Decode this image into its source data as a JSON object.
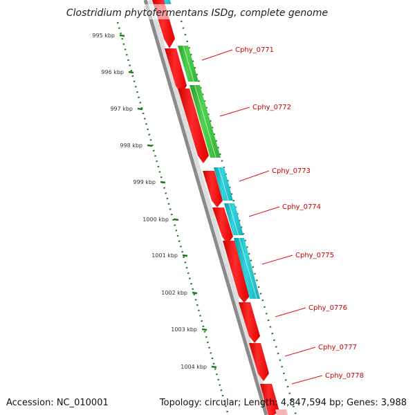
{
  "title": "Clostridium phytofermentans ISDg, complete genome",
  "accession": "Accession: NC_010001",
  "genome_summary": "Topology: circular; Length: 4,847,594 bp; Genes: 3,988",
  "colors": {
    "red_feature": "#ff1a1a",
    "green_feature": "#3ec53e",
    "cyan_feature": "#22c4cc",
    "backbone": "#888888",
    "tick": "#1f7a1f",
    "label": "#cc0000"
  },
  "kbp_ticks": [
    "995 kbp",
    "996 kbp",
    "997 kbp",
    "998 kbp",
    "999 kbp",
    "1000 kbp",
    "1001 kbp",
    "1002 kbp",
    "1003 kbp",
    "1004 kbp"
  ],
  "genes": [
    "Cphy_0771",
    "Cphy_0772",
    "Cphy_0773",
    "Cphy_0774",
    "Cphy_0775",
    "Cphy_0776",
    "Cphy_0777",
    "Cphy_0778"
  ]
}
